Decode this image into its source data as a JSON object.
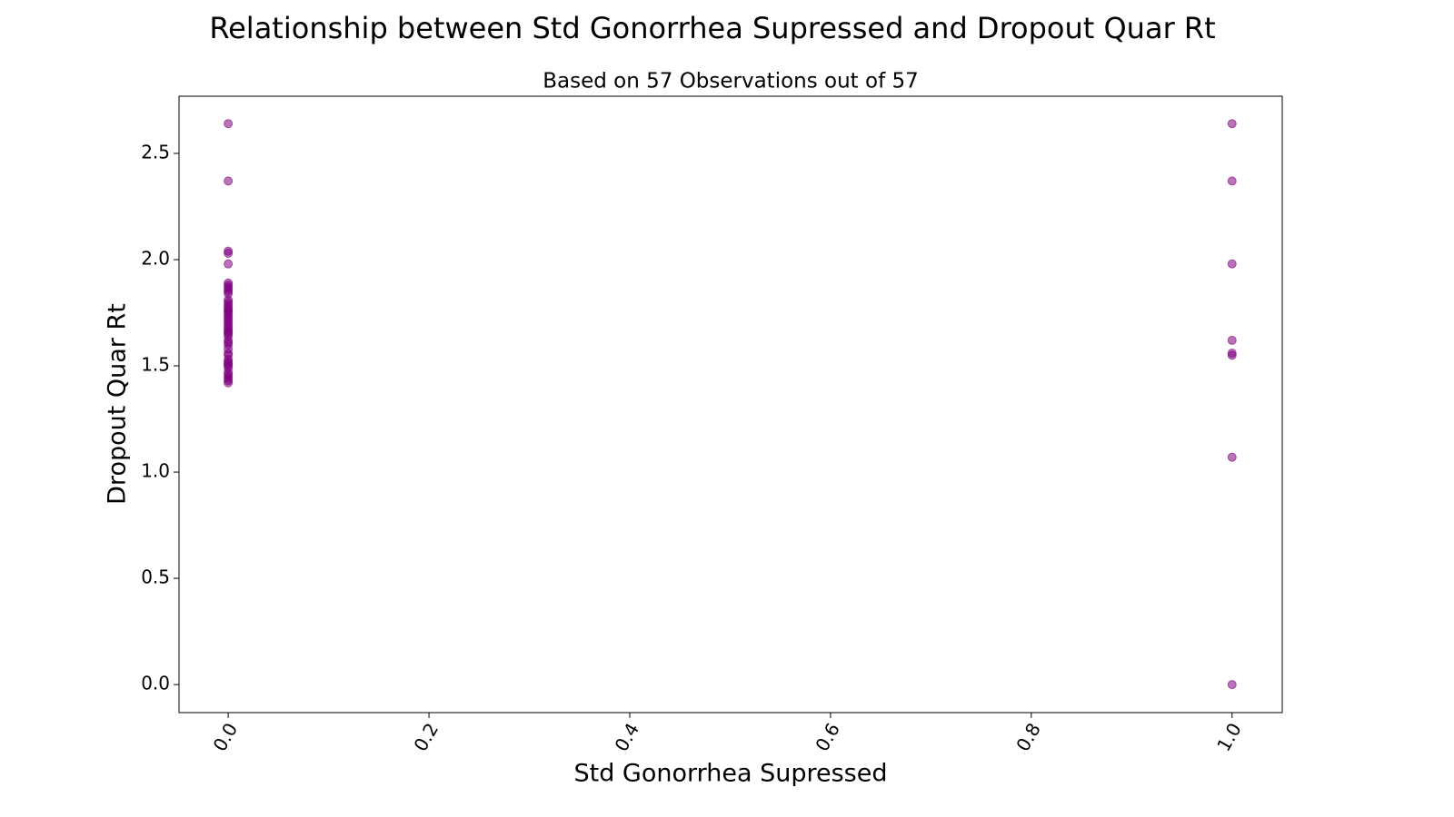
{
  "chart_data": {
    "type": "scatter",
    "title": "Relationship between Std Gonorrhea Supressed and Dropout Quar Rt",
    "subtitle": "Based on 57 Observations out of 57",
    "x_label": "Std Gonorrhea Supressed",
    "y_label": "Dropout Quar Rt",
    "color": "purple",
    "x": [
      0,
      0,
      0,
      0,
      0,
      0,
      0,
      0,
      0,
      0,
      0,
      0,
      0,
      0,
      0,
      0,
      0,
      0,
      0,
      0,
      0,
      0,
      0,
      0,
      0,
      0,
      0,
      0,
      0,
      0,
      0,
      0,
      0,
      0,
      0,
      0,
      0,
      0,
      0,
      0,
      0,
      0,
      0,
      0,
      0,
      0,
      0,
      0,
      0,
      1,
      1,
      1,
      1,
      1,
      1,
      1,
      1
    ],
    "values": [
      2.64,
      2.37,
      2.04,
      2.03,
      1.98,
      1.89,
      1.88,
      1.87,
      1.86,
      1.85,
      1.84,
      1.81,
      1.8,
      1.79,
      1.78,
      1.77,
      1.76,
      1.76,
      1.75,
      1.74,
      1.73,
      1.72,
      1.71,
      1.7,
      1.69,
      1.68,
      1.67,
      1.66,
      1.66,
      1.65,
      1.64,
      1.62,
      1.61,
      1.6,
      1.58,
      1.56,
      1.55,
      1.53,
      1.52,
      1.51,
      1.51,
      1.5,
      1.49,
      1.47,
      1.46,
      1.45,
      1.44,
      1.43,
      1.42,
      2.64,
      2.37,
      1.98,
      1.62,
      1.56,
      1.55,
      1.07,
      0
    ],
    "xlim": [
      -0.049,
      1.05
    ],
    "ylim": [
      -0.132,
      2.769
    ],
    "xticks": [
      {
        "value": 0,
        "label": "0.0"
      },
      0.2,
      0.4,
      0.6,
      0.8,
      {
        "value": 1,
        "label": "1.0"
      }
    ],
    "yticks": [
      {
        "value": 0,
        "label": "0.0"
      },
      0.5,
      {
        "value": 1,
        "label": "1.0"
      },
      1.5,
      {
        "value": 2,
        "label": "2.0"
      },
      2.5
    ],
    "grid": false
  }
}
